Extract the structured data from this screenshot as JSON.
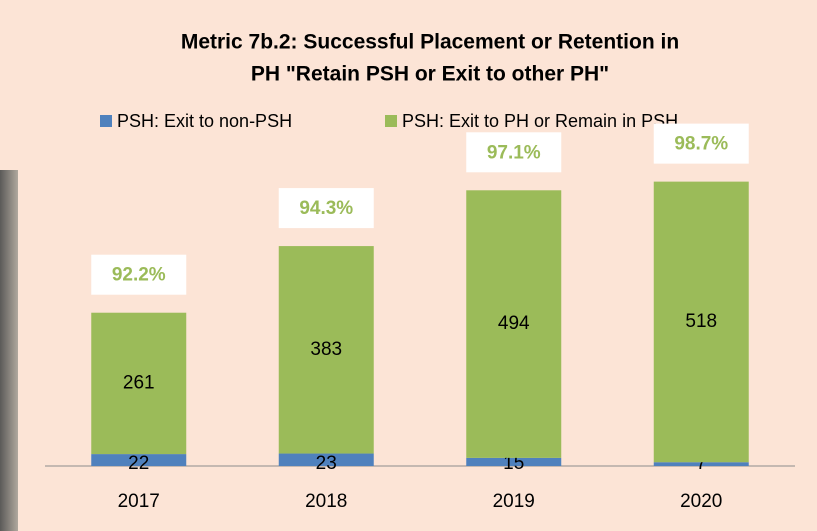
{
  "chart_data": {
    "type": "stacked_bar",
    "title": [
      "Metric 7b.2: Successful Placement or Retention in",
      "PH \"Retain PSH or Exit to other PH\""
    ],
    "categories": [
      "2017",
      "2018",
      "2019",
      "2020"
    ],
    "series": [
      {
        "name": "PSH: Exit to non-PSH",
        "color": "#4f81bd",
        "values": [
          22,
          23,
          15,
          7
        ]
      },
      {
        "name": "PSH: Exit to PH or Remain in PSH",
        "color": "#9bbb59",
        "values": [
          261,
          383,
          494,
          518
        ]
      }
    ],
    "top_labels": [
      "92.2%",
      "94.3%",
      "97.1%",
      "98.7%"
    ],
    "ylim": [
      0,
      600
    ],
    "legend": "top"
  }
}
